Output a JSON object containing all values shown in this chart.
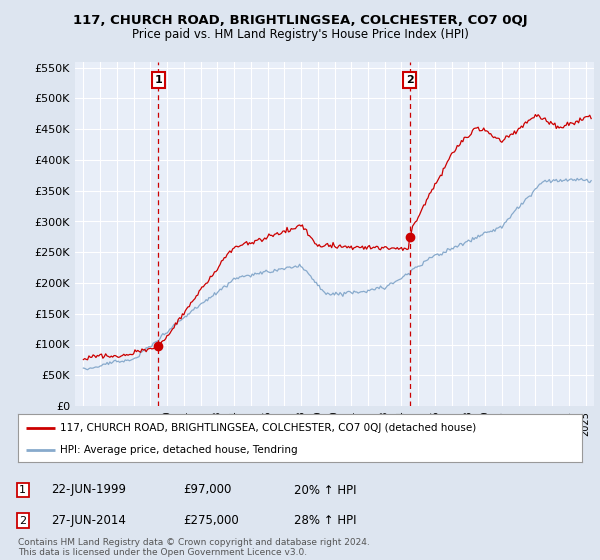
{
  "title": "117, CHURCH ROAD, BRIGHTLINGSEA, COLCHESTER, CO7 0QJ",
  "subtitle": "Price paid vs. HM Land Registry's House Price Index (HPI)",
  "ytick_values": [
    0,
    50000,
    100000,
    150000,
    200000,
    250000,
    300000,
    350000,
    400000,
    450000,
    500000,
    550000
  ],
  "ylim": [
    0,
    560000
  ],
  "xlim_start": 1994.5,
  "xlim_end": 2025.5,
  "background_color": "#dde5f0",
  "plot_bg_color": "#e8eef8",
  "grid_color": "#ffffff",
  "red_line_color": "#cc0000",
  "blue_line_color": "#88aacc",
  "marker1_x": 1999.47,
  "marker1_y": 97000,
  "marker2_x": 2014.49,
  "marker2_y": 275000,
  "marker1_label": "22-JUN-1999",
  "marker1_price": "£97,000",
  "marker1_hpi": "20% ↑ HPI",
  "marker2_label": "27-JUN-2014",
  "marker2_price": "£275,000",
  "marker2_hpi": "28% ↑ HPI",
  "legend_line1": "117, CHURCH ROAD, BRIGHTLINGSEA, COLCHESTER, CO7 0QJ (detached house)",
  "legend_line2": "HPI: Average price, detached house, Tendring",
  "footer": "Contains HM Land Registry data © Crown copyright and database right 2024.\nThis data is licensed under the Open Government Licence v3.0.",
  "box_label1": "1",
  "box_label2": "2"
}
